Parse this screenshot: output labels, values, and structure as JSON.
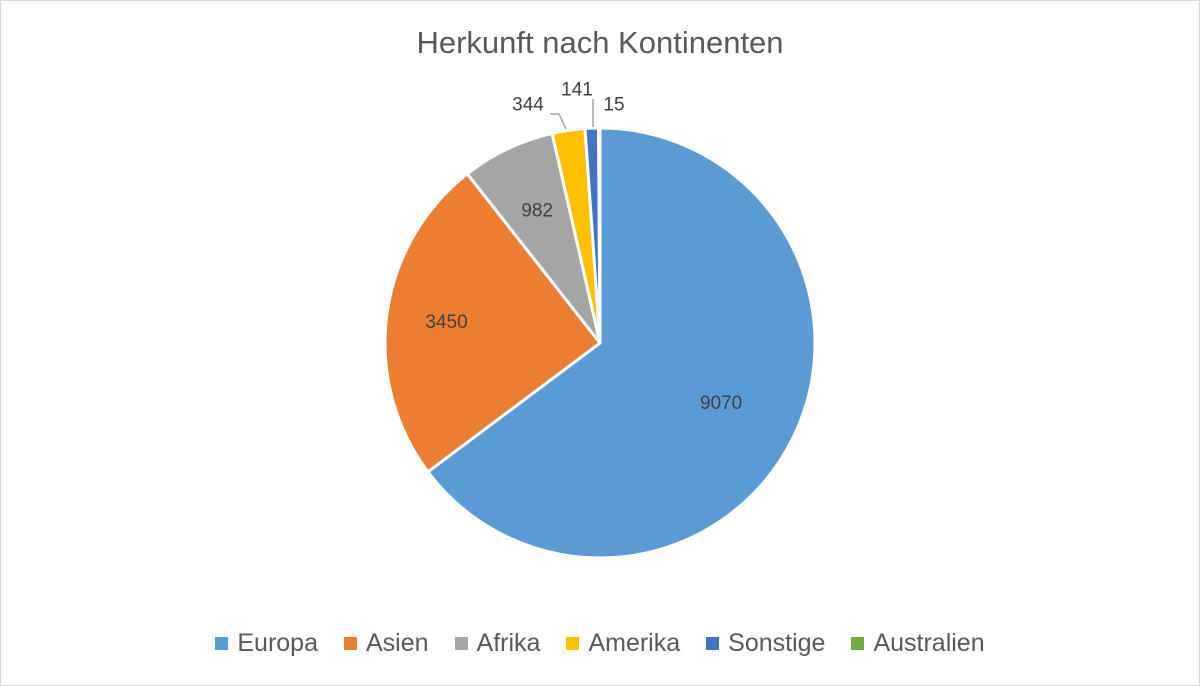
{
  "chart_data": {
    "type": "pie",
    "title": "Herkunft nach Kontinenten",
    "categories": [
      "Europa",
      "Asien",
      "Afrika",
      "Amerika",
      "Sonstige",
      "Australien"
    ],
    "values": [
      9070,
      3450,
      982,
      344,
      141,
      15
    ],
    "data_labels": [
      "9070",
      "3450",
      "982",
      "344",
      "141",
      "15"
    ],
    "colors": [
      "#5b9bd5",
      "#ed7d31",
      "#a5a5a5",
      "#ffc000",
      "#4472c4",
      "#70ad47"
    ],
    "legend_position": "bottom",
    "start_angle": "12 o'clock",
    "direction": "clockwise"
  }
}
